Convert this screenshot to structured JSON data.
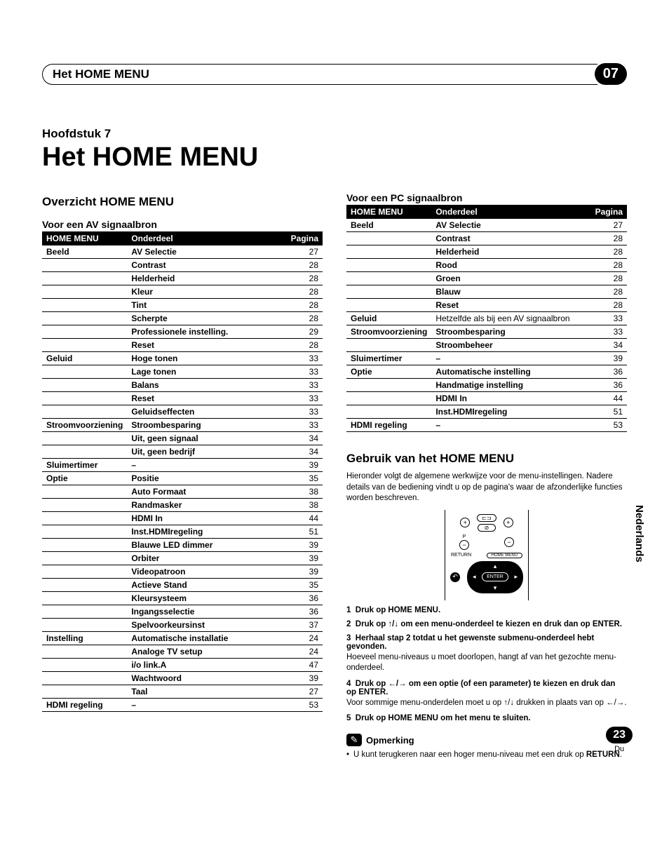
{
  "header": {
    "title": "Het HOME MENU",
    "badge": "07"
  },
  "chapter": "Hoofdstuk 7",
  "main_title": "Het HOME MENU",
  "side_tab": "Nederlands",
  "page": {
    "num": "23",
    "locale": "Du"
  },
  "left": {
    "section": "Overzicht HOME MENU",
    "sub": "Voor een AV signaalbron",
    "headers": [
      "HOME MENU",
      "Onderdeel",
      "Pagina"
    ],
    "rows": [
      {
        "cat": "Beeld",
        "item": "AV Selectie",
        "pg": "27"
      },
      {
        "cat": "",
        "item": "Contrast",
        "pg": "28"
      },
      {
        "cat": "",
        "item": "Helderheid",
        "pg": "28"
      },
      {
        "cat": "",
        "item": "Kleur",
        "pg": "28"
      },
      {
        "cat": "",
        "item": "Tint",
        "pg": "28"
      },
      {
        "cat": "",
        "item": "Scherpte",
        "pg": "28"
      },
      {
        "cat": "",
        "item": "Professionele instelling.",
        "pg": "29"
      },
      {
        "cat": "",
        "item": "Reset",
        "pg": "28"
      },
      {
        "cat": "Geluid",
        "item": "Hoge tonen",
        "pg": "33"
      },
      {
        "cat": "",
        "item": "Lage tonen",
        "pg": "33"
      },
      {
        "cat": "",
        "item": "Balans",
        "pg": "33"
      },
      {
        "cat": "",
        "item": "Reset",
        "pg": "33"
      },
      {
        "cat": "",
        "item": "Geluidseffecten",
        "pg": "33"
      },
      {
        "cat": "Stroomvoorziening",
        "item": "Stroombesparing",
        "pg": "33"
      },
      {
        "cat": "",
        "item": "Uit, geen signaal",
        "pg": "34"
      },
      {
        "cat": "",
        "item": "Uit, geen bedrijf",
        "pg": "34"
      },
      {
        "cat": "Sluimertimer",
        "item": "–",
        "pg": "39"
      },
      {
        "cat": "Optie",
        "item": "Positie",
        "pg": "35"
      },
      {
        "cat": "",
        "item": "Auto Formaat",
        "pg": "38"
      },
      {
        "cat": "",
        "item": "Randmasker",
        "pg": "38"
      },
      {
        "cat": "",
        "item": "HDMI In",
        "pg": "44"
      },
      {
        "cat": "",
        "item": "Inst.HDMIregeling",
        "pg": "51"
      },
      {
        "cat": "",
        "item": "Blauwe LED dimmer",
        "pg": "39"
      },
      {
        "cat": "",
        "item": "Orbiter",
        "pg": "39"
      },
      {
        "cat": "",
        "item": "Videopatroon",
        "pg": "39"
      },
      {
        "cat": "",
        "item": "Actieve Stand",
        "pg": "35"
      },
      {
        "cat": "",
        "item": "Kleursysteem",
        "pg": "36"
      },
      {
        "cat": "",
        "item": "Ingangsselectie",
        "pg": "36"
      },
      {
        "cat": "",
        "item": "Spelvoorkeursinst",
        "pg": "37"
      },
      {
        "cat": "Instelling",
        "item": "Automatische installatie",
        "pg": "24"
      },
      {
        "cat": "",
        "item": "Analoge TV setup",
        "pg": "24"
      },
      {
        "cat": "",
        "item": "i/o link.A",
        "pg": "47"
      },
      {
        "cat": "",
        "item": "Wachtwoord",
        "pg": "39"
      },
      {
        "cat": "",
        "item": "Taal",
        "pg": "27"
      },
      {
        "cat": "HDMI regeling",
        "item": "–",
        "pg": "53"
      }
    ]
  },
  "right": {
    "sub": "Voor een PC signaalbron",
    "headers": [
      "HOME MENU",
      "Onderdeel",
      "Pagina"
    ],
    "rows": [
      {
        "cat": "Beeld",
        "item": "AV Selectie",
        "pg": "27",
        "bold": true
      },
      {
        "cat": "",
        "item": "Contrast",
        "pg": "28",
        "bold": true
      },
      {
        "cat": "",
        "item": "Helderheid",
        "pg": "28",
        "bold": true
      },
      {
        "cat": "",
        "item": "Rood",
        "pg": "28",
        "bold": true
      },
      {
        "cat": "",
        "item": "Groen",
        "pg": "28",
        "bold": true
      },
      {
        "cat": "",
        "item": "Blauw",
        "pg": "28",
        "bold": true
      },
      {
        "cat": "",
        "item": "Reset",
        "pg": "28",
        "bold": true
      },
      {
        "cat": "Geluid",
        "item": "Hetzelfde als bij een AV signaalbron",
        "pg": "33",
        "bold": false
      },
      {
        "cat": "Stroomvoorziening",
        "item": "Stroombesparing",
        "pg": "33",
        "bold": true
      },
      {
        "cat": "",
        "item": "Stroombeheer",
        "pg": "34",
        "bold": true
      },
      {
        "cat": "Sluimertimer",
        "item": "–",
        "pg": "39",
        "bold": true
      },
      {
        "cat": "Optie",
        "item": "Automatische instelling",
        "pg": "36",
        "bold": true
      },
      {
        "cat": "",
        "item": "Handmatige instelling",
        "pg": "36",
        "bold": true
      },
      {
        "cat": "",
        "item": "HDMI In",
        "pg": "44",
        "bold": true
      },
      {
        "cat": "",
        "item": "Inst.HDMIregeling",
        "pg": "51",
        "bold": true
      },
      {
        "cat": "HDMI regeling",
        "item": "–",
        "pg": "53",
        "bold": true
      }
    ],
    "usage_h": "Gebruik van het HOME MENU",
    "intro": "Hieronder volgt de algemene werkwijze voor de menu-instellingen. Nadere details van de bediening vindt u op de pagina's waar de afzonderlijke functies worden beschreven.",
    "remote": {
      "mute": "⊘",
      "p": "P",
      "return": "RETURN",
      "home": "HOME MENU",
      "enter": "ENTER"
    },
    "steps": [
      {
        "n": "1",
        "bold": "Druk op HOME MENU.",
        "plain": ""
      },
      {
        "n": "2",
        "bold": "Druk op ↑/↓ om een menu-onderdeel te kiezen en druk dan op ENTER.",
        "plain": ""
      },
      {
        "n": "3",
        "bold": "Herhaal stap 2 totdat u het gewenste submenu-onderdeel hebt gevonden.",
        "plain": "Hoeveel menu-niveaus u moet doorlopen, hangt af van het gezochte menu-onderdeel."
      },
      {
        "n": "4",
        "bold": "Druk op ←/→ om een optie (of een parameter) te kiezen en druk dan op ENTER.",
        "plain": "Voor sommige menu-onderdelen moet u op ↑/↓ drukken in plaats van op ←/→."
      },
      {
        "n": "5",
        "bold": "Druk op HOME MENU om het menu te sluiten.",
        "plain": ""
      }
    ],
    "note_label": "Opmerking",
    "note_text": "U kunt terugkeren naar een hoger menu-niveau met een druk op ",
    "note_bold": "RETURN"
  }
}
